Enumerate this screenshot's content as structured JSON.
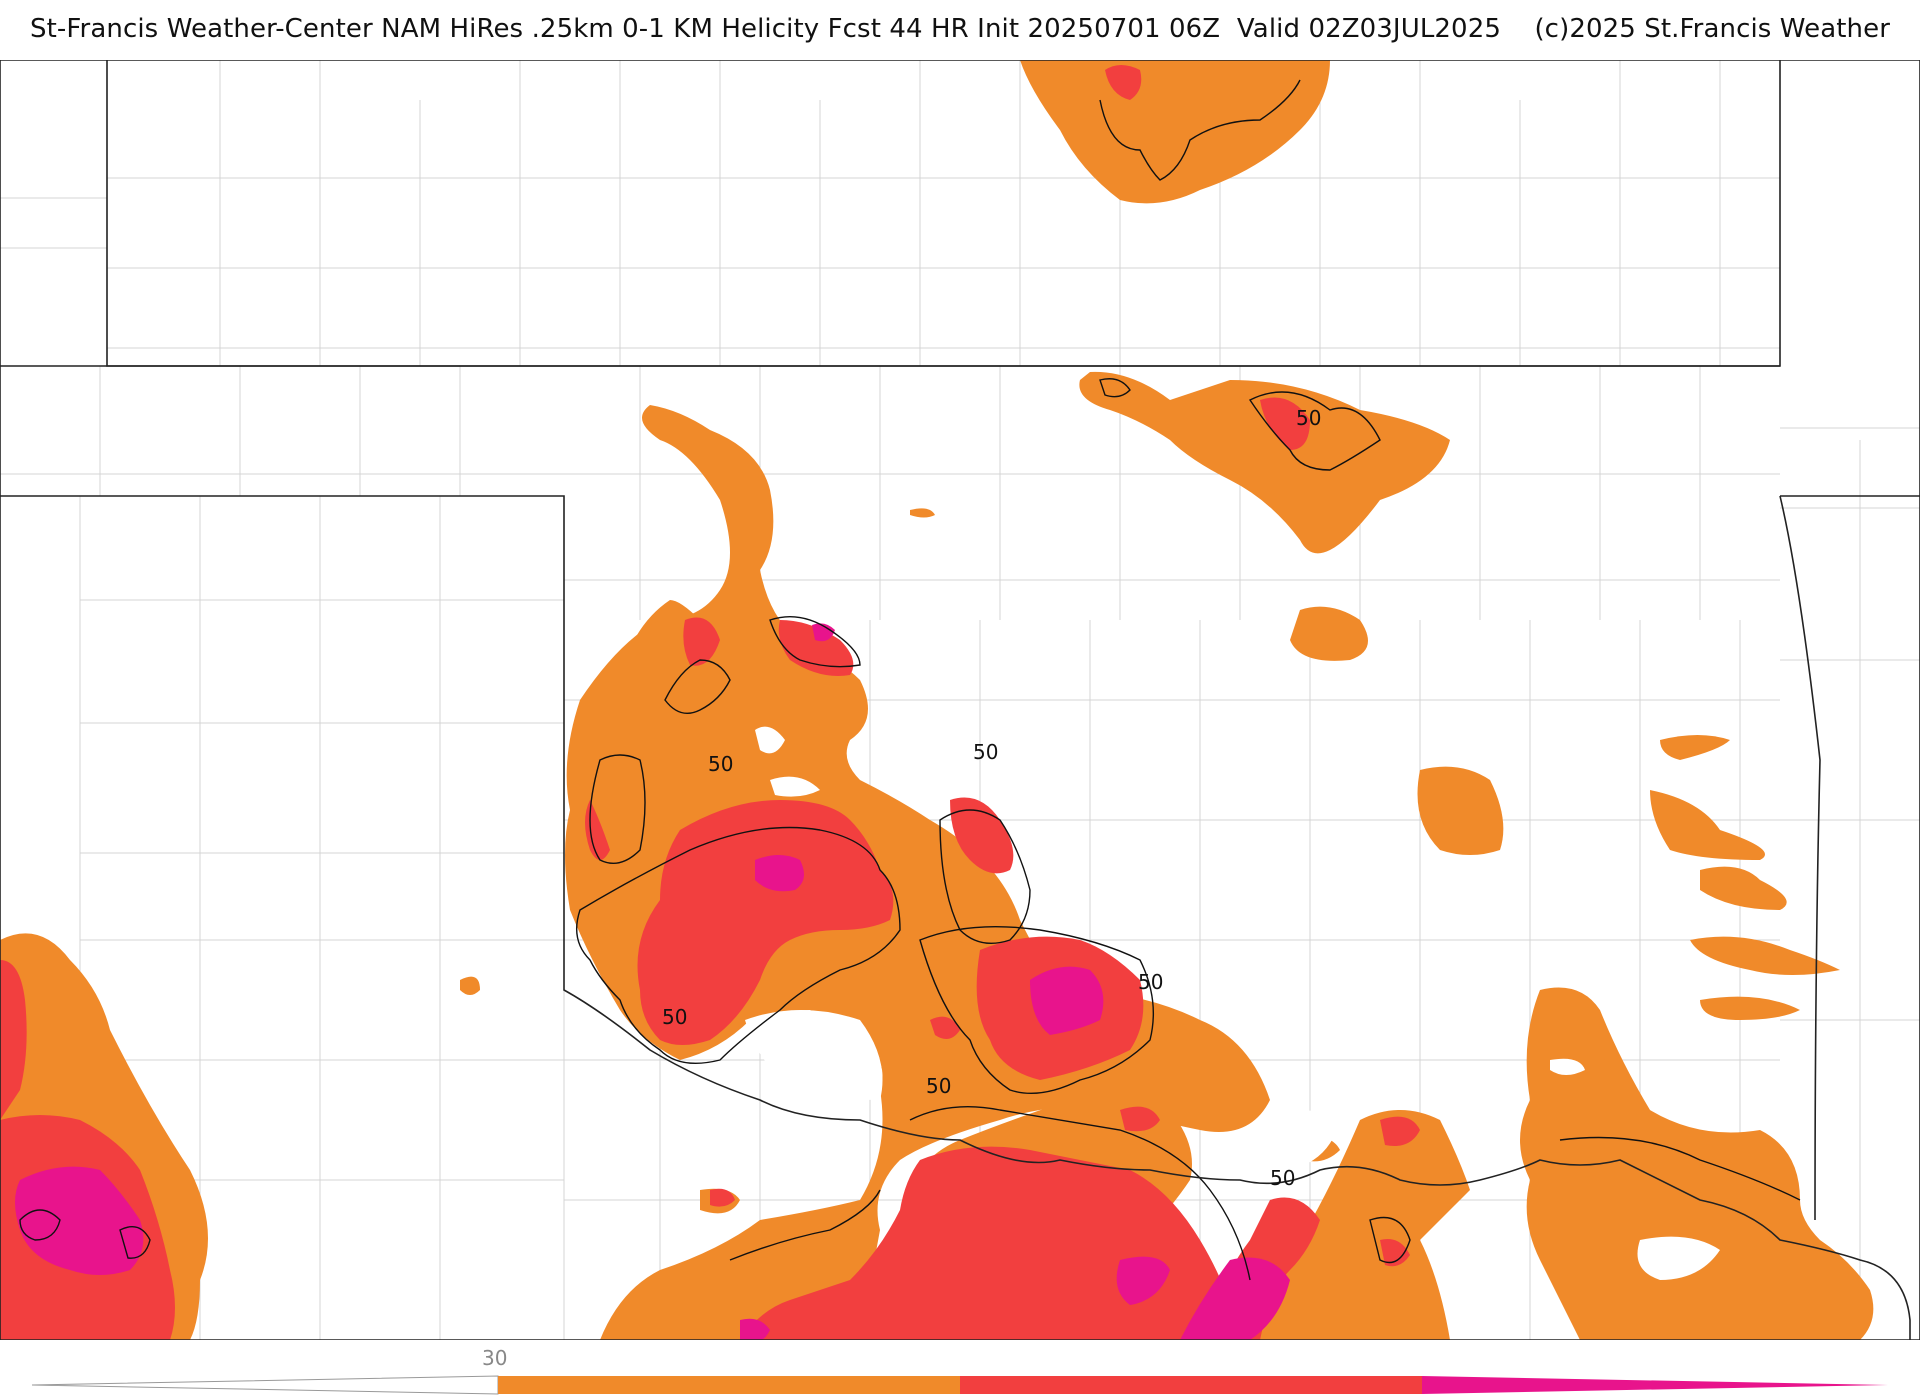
{
  "header": {
    "title": "St-Francis Weather-Center NAM HiRes .25km 0-1 KM Helicity Fcst 44 HR Init 20250701 06Z  Valid 02Z03JUL2025    (c)2025 St.Francis Weather"
  },
  "legend": {
    "tick_label": "30",
    "colors": {
      "band1": "#f08a2a",
      "band2": "#f23f3f",
      "band3": "#e8148c"
    }
  },
  "contours": {
    "labels": [
      "50",
      "50",
      "50",
      "50",
      "50",
      "50",
      "50"
    ]
  },
  "colors": {
    "orange": "#f08a2a",
    "red": "#f23f3f",
    "magenta": "#e8148c",
    "state_border": "#222222",
    "county_lines": "#cfcfcf"
  }
}
